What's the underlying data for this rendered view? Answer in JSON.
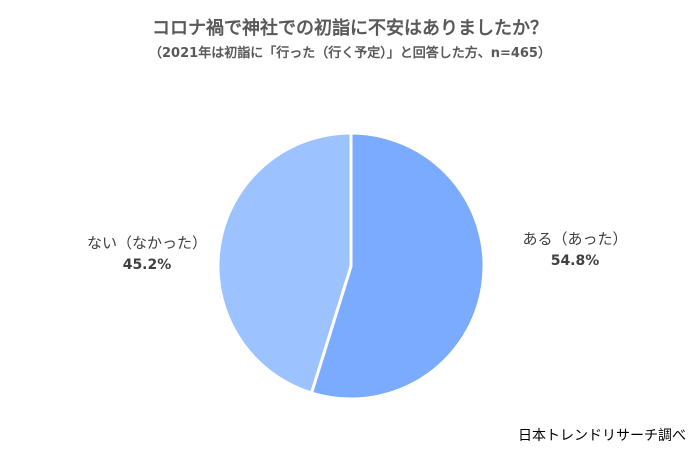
{
  "chart_data": {
    "type": "pie",
    "title": "コロナ禍で神社での初詣に不安はありましたか？",
    "subtitle": "（2021年は初詣に「行った（行く予定）」と回答した方、n=465）",
    "slices": [
      {
        "label": "ある（あった）",
        "value": 54.8,
        "value_label": "54.8%",
        "color": "#7aabff"
      },
      {
        "label": "ない（なかった）",
        "value": 45.2,
        "value_label": "45.2%",
        "color": "#9cc2ff"
      }
    ],
    "start_angle_deg": 0,
    "direction": "clockwise",
    "legend": "none"
  },
  "source": "日本トレンドリサーチ調べ"
}
